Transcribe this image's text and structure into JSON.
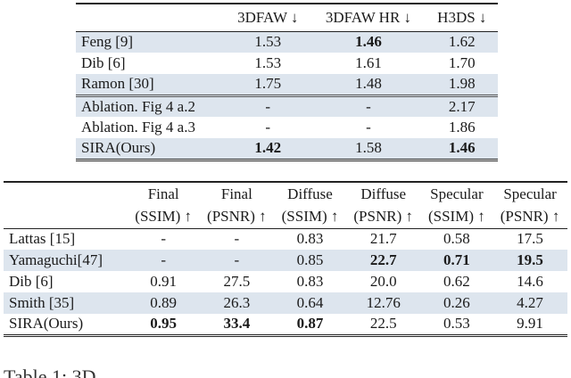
{
  "table_top": {
    "headers": [
      "",
      "3DFAW ↓",
      "3DFAW HR ↓",
      "H3DS ↓"
    ],
    "rows": [
      {
        "name": "Feng [9]",
        "values": [
          "1.53",
          "1.46",
          "1.62"
        ],
        "bold": [
          false,
          true,
          false
        ],
        "shaded": true
      },
      {
        "name": "Dib [6]",
        "values": [
          "1.53",
          "1.61",
          "1.70"
        ],
        "bold": [
          false,
          false,
          false
        ],
        "shaded": false
      },
      {
        "name": "Ramon [30]",
        "values": [
          "1.75",
          "1.48",
          "1.98"
        ],
        "bold": [
          false,
          false,
          false
        ],
        "shaded": true
      },
      {
        "name": "Ablation. Fig 4 a.2",
        "values": [
          "-",
          "-",
          "2.17"
        ],
        "bold": [
          false,
          false,
          false
        ],
        "shaded": true
      },
      {
        "name": "Ablation. Fig 4 a.3",
        "values": [
          "-",
          "-",
          "1.86"
        ],
        "bold": [
          false,
          false,
          false
        ],
        "shaded": false
      },
      {
        "name": "SIRA(Ours)",
        "values": [
          "1.42",
          "1.58",
          "1.46"
        ],
        "bold": [
          true,
          false,
          true
        ],
        "shaded": true
      }
    ]
  },
  "table_bottom": {
    "headers_line1": [
      "",
      "Final",
      "Final",
      "Diffuse",
      "Diffuse",
      "Specular",
      "Specular"
    ],
    "headers_line2": [
      "",
      "(SSIM) ↑",
      "(PSNR) ↑",
      "(SSIM) ↑",
      "(PSNR) ↑",
      "(SSIM) ↑",
      "(PSNR) ↑"
    ],
    "rows": [
      {
        "name": "Lattas [15]",
        "values": [
          "-",
          "-",
          "0.83",
          "21.7",
          "0.58",
          "17.5"
        ],
        "bold": [
          false,
          false,
          false,
          false,
          false,
          false
        ],
        "shaded": false
      },
      {
        "name": "Yamaguchi[47]",
        "values": [
          "-",
          "-",
          "0.85",
          "22.7",
          "0.71",
          "19.5"
        ],
        "bold": [
          false,
          false,
          false,
          true,
          true,
          true
        ],
        "shaded": true
      },
      {
        "name": "Dib [6]",
        "values": [
          "0.91",
          "27.5",
          "0.83",
          "20.0",
          "0.62",
          "14.6"
        ],
        "bold": [
          false,
          false,
          false,
          false,
          false,
          false
        ],
        "shaded": false
      },
      {
        "name": "Smith [35]",
        "values": [
          "0.89",
          "26.3",
          "0.64",
          "12.76",
          "0.26",
          "4.27"
        ],
        "bold": [
          false,
          false,
          false,
          false,
          false,
          false
        ],
        "shaded": true
      },
      {
        "name": "SIRA(Ours)",
        "values": [
          "0.95",
          "33.4",
          "0.87",
          "22.5",
          "0.53",
          "9.91"
        ],
        "bold": [
          true,
          true,
          true,
          false,
          false,
          false
        ],
        "shaded": false
      }
    ]
  },
  "caption": {
    "text": "Table 1: 3D"
  }
}
